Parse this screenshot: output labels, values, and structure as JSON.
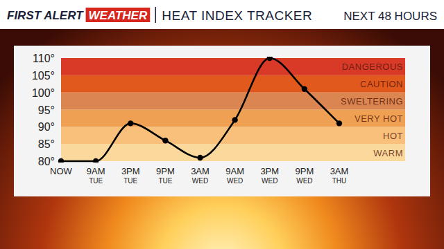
{
  "chart_data": {
    "type": "line",
    "brand": "FIRST ALERT",
    "brand_tag": "WEATHER",
    "title": "HEAT INDEX TRACKER",
    "subtitle": "NEXT 48 HOURS",
    "categories": [
      "NOW",
      "9AM\nTUE",
      "3PM\nTUE",
      "9PM\nTUE",
      "3AM\nWED",
      "9AM\nWED",
      "3PM\nWED",
      "9PM\nWED",
      "3AM\nTHU"
    ],
    "values": [
      80,
      80,
      91,
      86,
      81,
      92,
      110,
      101,
      91
    ],
    "color": "#000000",
    "marker": "circle",
    "grid": false,
    "ylim": [
      80,
      110
    ],
    "yticks": [
      {
        "value": 80,
        "label": "80°"
      },
      {
        "value": 85,
        "label": "85°"
      },
      {
        "value": 90,
        "label": "90°"
      },
      {
        "value": 95,
        "label": "95°"
      },
      {
        "value": 100,
        "label": "100°"
      },
      {
        "value": 105,
        "label": "105°"
      },
      {
        "value": 110,
        "label": "110°"
      }
    ],
    "bands": [
      {
        "label": "WARM",
        "from": 80,
        "to": 85,
        "color": "#fbd89c"
      },
      {
        "label": "HOT",
        "from": 85,
        "to": 90,
        "color": "#f8c07a"
      },
      {
        "label": "VERY HOT",
        "from": 90,
        "to": 95,
        "color": "#f0a052"
      },
      {
        "label": "SWELTERING",
        "from": 95,
        "to": 100,
        "color": "#db8550"
      },
      {
        "label": "CAUTION",
        "from": 100,
        "to": 105,
        "color": "#e2591e"
      },
      {
        "label": "DANGEROUS",
        "from": 105,
        "to": 110,
        "color": "#d83a27"
      }
    ]
  }
}
